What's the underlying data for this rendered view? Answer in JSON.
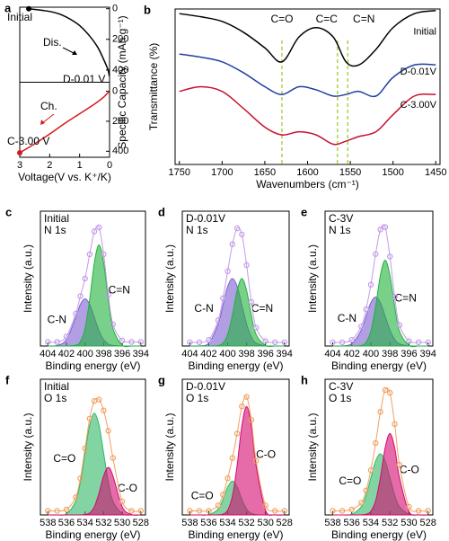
{
  "chart_data": [
    {
      "type": "line",
      "panel": "a",
      "xlabel": "Voltage(V vs. K⁺/K)",
      "ylabel": "Specific Capacity (mAh g⁻¹)",
      "xlim": [
        3,
        0
      ],
      "xticks": [
        3,
        2,
        1,
        0
      ],
      "subplots": [
        {
          "ylim": [
            -10,
            480
          ],
          "yticks": [
            0,
            200,
            400
          ],
          "series": [
            {
              "color": "#000000",
              "x": [
                2.7,
                2.5,
                2.2,
                1.9,
                1.6,
                1.3,
                1.0,
                0.7,
                0.4,
                0.2,
                0.05,
                0.01
              ],
              "values": [
                0,
                5,
                12,
                22,
                40,
                70,
                110,
                170,
                250,
                330,
                400,
                440
              ]
            }
          ]
        },
        {
          "ylim": [
            -60,
            440
          ],
          "yticks": [
            0,
            200,
            400
          ],
          "series": [
            {
              "color": "#d7191c",
              "x": [
                0.01,
                0.2,
                0.5,
                1.0,
                1.5,
                2.0,
                2.5,
                3.0
              ],
              "values": [
                0,
                40,
                85,
                150,
                215,
                285,
                350,
                410
              ]
            }
          ]
        }
      ],
      "annotations": [
        {
          "text": "Initial",
          "color": "#7a1f1f"
        },
        {
          "text": "Dis.",
          "color": "#000000"
        },
        {
          "text": "D-0.01 V",
          "color": "#1f3fa0"
        },
        {
          "text": "Ch.",
          "color": "#d7191c"
        },
        {
          "text": "C-3.00 V",
          "color": "#d7191c"
        }
      ]
    },
    {
      "type": "line",
      "panel": "b",
      "xlabel": "Wavenumbers (cm⁻¹)",
      "ylabel": "Transmittance (%)",
      "xlim": [
        1755,
        1445
      ],
      "xticks": [
        1750,
        1700,
        1650,
        1600,
        1550,
        1500,
        1450
      ],
      "ylim": [
        0,
        100
      ],
      "x": [
        1750,
        1725,
        1700,
        1675,
        1650,
        1630,
        1610,
        1590,
        1570,
        1555,
        1540,
        1520,
        1500,
        1475,
        1450
      ],
      "series": [
        {
          "name": "Initial",
          "color": "#000000",
          "values": [
            97,
            95,
            92,
            85,
            75,
            66,
            82,
            88,
            82,
            66,
            64,
            74,
            88,
            97,
            99
          ]
        },
        {
          "name": "D-0.01V",
          "color": "#1f3fa0",
          "values": [
            71,
            69,
            66,
            59,
            50,
            45,
            50,
            48,
            44,
            45,
            47,
            44,
            56,
            64,
            64
          ]
        },
        {
          "name": "C-3.00V",
          "color": "#c8102e",
          "values": [
            47,
            50,
            47,
            36,
            24,
            19,
            21,
            19,
            13,
            15,
            18,
            21,
            32,
            44,
            45
          ]
        }
      ],
      "markers": [
        {
          "label": "C=O",
          "value": 1630
        },
        {
          "label": "C=C",
          "value": 1565
        },
        {
          "label": "C=N",
          "value": 1553
        }
      ]
    },
    {
      "type": "xps",
      "panel": "c",
      "title": [
        "Initial",
        "N 1s"
      ],
      "xlabel": "Binding energy (eV)",
      "ylabel": "Intensity (a.u.)",
      "xlim": [
        404.8,
        393.5
      ],
      "xticks": [
        404,
        402,
        400,
        398,
        396,
        394
      ],
      "ylim": [
        0,
        100
      ],
      "x": [
        404,
        403,
        402,
        401,
        400.5,
        400,
        399.5,
        399,
        398.5,
        398,
        397.5,
        397,
        396,
        395,
        394
      ],
      "data": {
        "color": "#c39be8",
        "values": [
          3,
          3,
          7,
          24,
          37,
          50,
          68,
          85,
          88,
          68,
          38,
          16,
          4,
          3,
          3
        ]
      },
      "series": [
        {
          "name": "C-N",
          "color": "#7b5fd0",
          "values": [
            0,
            0.4,
            4.7,
            21.2,
            30.9,
            35,
            30.9,
            21.2,
            11.4,
            4.7,
            1.5,
            0.4,
            0,
            0,
            0
          ]
        },
        {
          "name": "C=N",
          "color": "#1fb33a",
          "values": [
            0,
            0,
            0,
            0.6,
            3.3,
            12.9,
            34.4,
            61.7,
            75,
            61.7,
            34.4,
            12.9,
            0.6,
            0,
            0
          ]
        }
      ]
    },
    {
      "type": "xps",
      "panel": "d",
      "title": [
        "D-0.01V",
        "N 1s"
      ],
      "xlabel": "Binding energy (eV)",
      "ylabel": "Intensity (a.u.)",
      "xlim": [
        404.8,
        393.5
      ],
      "xticks": [
        404,
        402,
        400,
        398,
        396,
        394
      ],
      "ylim": [
        0,
        110
      ],
      "x": [
        404,
        403,
        402,
        401,
        400.5,
        400,
        399.5,
        399,
        398.5,
        398,
        397.5,
        397,
        396,
        395,
        394
      ],
      "data": {
        "color": "#c39be8",
        "values": [
          3,
          3,
          5,
          21,
          39,
          61,
          83,
          96,
          91,
          66,
          36,
          15,
          4,
          3,
          3
        ]
      },
      "series": [
        {
          "name": "C-N",
          "color": "#7b5fd0",
          "values": [
            0,
            0.1,
            2.4,
            17.9,
            33.4,
            48.6,
            55,
            48.6,
            33.4,
            17.9,
            7.4,
            2.4,
            0.1,
            0,
            0
          ]
        },
        {
          "name": "C=N",
          "color": "#1fb33a",
          "values": [
            0,
            0,
            0,
            0.4,
            2.4,
            9.5,
            25.2,
            45.3,
            55,
            45.3,
            25.2,
            9.5,
            0.4,
            0,
            0
          ]
        }
      ]
    },
    {
      "type": "xps",
      "panel": "e",
      "title": [
        "C-3V",
        "N 1s"
      ],
      "xlabel": "Binding energy (eV)",
      "ylabel": "Intensity (a.u.)",
      "xlim": [
        404.8,
        393.5
      ],
      "xticks": [
        404,
        402,
        400,
        398,
        396,
        394
      ],
      "ylim": [
        0,
        110
      ],
      "x": [
        404,
        403,
        402,
        401,
        400.5,
        400,
        399.5,
        399,
        398.5,
        398,
        397.5,
        397,
        396,
        395,
        394
      ],
      "data": {
        "color": "#c39be8",
        "values": [
          3,
          3,
          5,
          16,
          30,
          50,
          75,
          95,
          97,
          73,
          40,
          17,
          4,
          3,
          3
        ]
      },
      "series": [
        {
          "name": "C-N",
          "color": "#7b5fd0",
          "values": [
            0,
            0.1,
            1.8,
            13,
            24.3,
            35.3,
            40,
            35.3,
            24.3,
            13,
            5.4,
            1.8,
            0.1,
            0,
            0
          ]
        },
        {
          "name": "C=N",
          "color": "#1fb33a",
          "values": [
            0,
            0,
            0,
            0.5,
            3.1,
            12,
            32.1,
            57.6,
            70,
            57.6,
            32.1,
            12,
            0.5,
            0,
            0
          ]
        }
      ]
    },
    {
      "type": "xps",
      "panel": "f",
      "title": [
        "Initial",
        "O 1s"
      ],
      "xlabel": "Binding energy (eV)",
      "ylabel": "Intensity (a.u.)",
      "xlim": [
        538.8,
        527.5
      ],
      "xticks": [
        538,
        536,
        534,
        532,
        530,
        528
      ],
      "ylim": [
        0,
        100
      ],
      "x": [
        538,
        537,
        536,
        535,
        534.5,
        534,
        533.5,
        533,
        532.5,
        532,
        531.5,
        531,
        530,
        529,
        528
      ],
      "data": {
        "color": "#f0a060",
        "values": [
          3,
          3,
          4,
          13,
          27,
          49,
          71,
          84,
          85,
          77,
          62,
          42,
          10,
          3,
          3
        ]
      },
      "series": [
        {
          "name": "C=O",
          "color": "#2fb866",
          "values": [
            0,
            0,
            0.8,
            10.1,
            24.4,
            45.5,
            66.2,
            75,
            66.2,
            45.5,
            24.4,
            10.1,
            0.8,
            0,
            0
          ]
        },
        {
          "name": "C-O",
          "color": "#d4096f",
          "values": [
            0,
            0,
            0,
            0,
            0,
            0.3,
            1.5,
            6,
            16,
            28.8,
            35,
            28.8,
            6,
            0.3,
            0
          ]
        }
      ]
    },
    {
      "type": "xps",
      "panel": "g",
      "title": [
        "D-0.01V",
        "O 1s"
      ],
      "xlabel": "Binding energy (eV)",
      "ylabel": "Intensity (a.u.)",
      "xlim": [
        538.8,
        527.5
      ],
      "xticks": [
        538,
        536,
        534,
        532,
        530,
        528
      ],
      "ylim": [
        0,
        100
      ],
      "x": [
        538,
        537,
        536,
        535,
        534.5,
        534,
        533.5,
        533,
        532.5,
        532,
        531.5,
        531,
        530,
        529,
        528
      ],
      "data": {
        "color": "#f0a060",
        "values": [
          3,
          3,
          3,
          7,
          15,
          27,
          42,
          60,
          80,
          87,
          70,
          40,
          7,
          3,
          3
        ]
      },
      "series": [
        {
          "name": "C=O",
          "color": "#2fb866",
          "values": [
            0,
            0,
            0.2,
            4.3,
            11.5,
            20.6,
            25,
            20.6,
            11.5,
            4.3,
            1.1,
            0.2,
            0,
            0,
            0
          ]
        },
        {
          "name": "C-O",
          "color": "#d4096f",
          "values": [
            0,
            0,
            0,
            0.1,
            0.6,
            3.5,
            13.8,
            36.6,
            65.8,
            80,
            65.8,
            36.6,
            3.5,
            0.1,
            0
          ]
        }
      ]
    },
    {
      "type": "xps",
      "panel": "h",
      "title": [
        "C-3V",
        "O 1s"
      ],
      "xlabel": "Binding energy (eV)",
      "ylabel": "Intensity (a.u.)",
      "xlim": [
        538.8,
        527.5
      ],
      "xticks": [
        538,
        536,
        534,
        532,
        530,
        528
      ],
      "ylim": [
        0,
        100
      ],
      "x": [
        538,
        537,
        536,
        535,
        534.5,
        534,
        533.5,
        533,
        532.5,
        532,
        531.5,
        531,
        530,
        529,
        528
      ],
      "data": {
        "color": "#f0a060",
        "values": [
          3,
          3,
          4,
          9,
          18,
          33,
          53,
          76,
          92,
          90,
          67,
          37,
          6,
          3,
          3
        ]
      },
      "series": [
        {
          "name": "C=O",
          "color": "#2fb866",
          "values": [
            0,
            0,
            0.5,
            6.1,
            14.6,
            27.3,
            39.7,
            45,
            39.7,
            27.3,
            14.6,
            6.1,
            0.5,
            0,
            0
          ]
        },
        {
          "name": "C-O",
          "color": "#d4096f",
          "values": [
            0,
            0,
            0,
            0.1,
            0.5,
            2.6,
            10.3,
            27.5,
            49.4,
            60,
            49.4,
            27.5,
            2.6,
            0.1,
            0
          ]
        }
      ]
    }
  ]
}
